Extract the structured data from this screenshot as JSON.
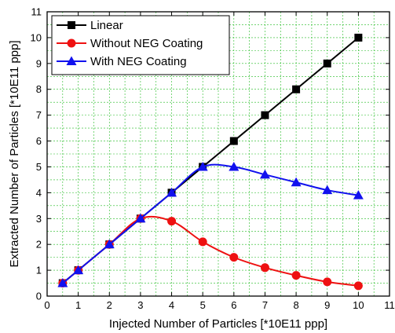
{
  "chart_data": {
    "type": "line",
    "title": "",
    "xlabel": "Injected Number of Particles [*10E11 ppp]",
    "ylabel": "Extracted Number of Particles [*10E11 ppp]",
    "xlim": [
      0,
      11
    ],
    "ylim": [
      0,
      11
    ],
    "xticks": [
      0,
      1,
      2,
      3,
      4,
      5,
      6,
      7,
      8,
      9,
      10,
      11
    ],
    "yticks": [
      0,
      1,
      2,
      3,
      4,
      5,
      6,
      7,
      8,
      9,
      10,
      11
    ],
    "grid": true,
    "grid_style": "dashed",
    "grid_color": "#22bb22",
    "legend_position": "top-left",
    "series": [
      {
        "name": "Linear",
        "color": "#000000",
        "marker": "square",
        "x": [
          0.5,
          1,
          2,
          3,
          4,
          5,
          6,
          7,
          8,
          9,
          10
        ],
        "y": [
          0.5,
          1,
          2,
          3,
          4,
          5,
          6,
          7,
          8,
          9,
          10
        ]
      },
      {
        "name": "Without NEG Coating",
        "color": "#ee1111",
        "marker": "circle",
        "x": [
          0.5,
          1,
          2,
          3,
          4,
          5,
          6,
          7,
          8,
          9,
          10
        ],
        "y": [
          0.5,
          1.0,
          2.0,
          3.0,
          2.9,
          2.1,
          1.5,
          1.1,
          0.8,
          0.55,
          0.4
        ]
      },
      {
        "name": "With NEG Coating",
        "color": "#1111ee",
        "marker": "triangle",
        "x": [
          0.5,
          1,
          2,
          3,
          4,
          5,
          6,
          7,
          8,
          9,
          10
        ],
        "y": [
          0.5,
          1.0,
          2.0,
          3.0,
          4.0,
          5.0,
          5.0,
          4.7,
          4.4,
          4.1,
          3.9
        ]
      }
    ]
  }
}
